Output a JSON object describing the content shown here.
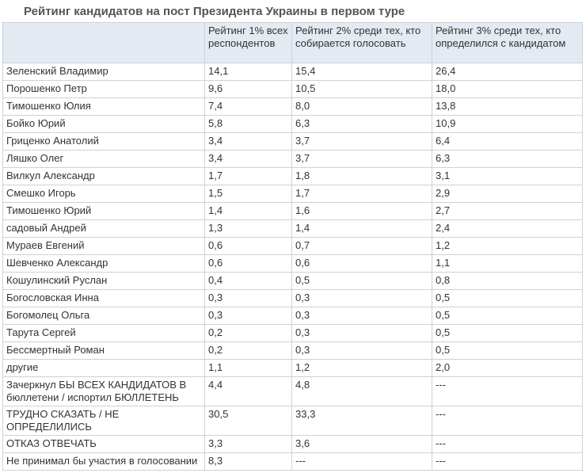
{
  "title": "Рейтинг кандидатов на пост Президента Украины в первом туре",
  "table": {
    "header": [
      "Рейтинг 1% всех респондентов",
      "Рейтинг 2% среди тех, кто собирается голосовать",
      "Рейтинг 3% среди тех, кто определился с кандидатом"
    ],
    "rows": [
      [
        "Зеленский Владимир",
        "14,1",
        "15,4",
        "26,4"
      ],
      [
        "Порошенко Петр",
        "9,6",
        "10,5",
        "18,0"
      ],
      [
        "Тимошенко Юлия",
        "7,4",
        "8,0",
        "13,8"
      ],
      [
        "Бойко Юрий",
        "5,8",
        "6,3",
        "10,9"
      ],
      [
        "Гриценко Анатолий",
        "3,4",
        "3,7",
        "6,4"
      ],
      [
        "Ляшко Олег",
        "3,4",
        "3,7",
        "6,3"
      ],
      [
        "Вилкул Александр",
        "1,7",
        "1,8",
        "3,1"
      ],
      [
        "Смешко Игорь",
        "1,5",
        "1,7",
        "2,9"
      ],
      [
        "Тимошенко Юрий",
        "1,4",
        "1,6",
        "2,7"
      ],
      [
        "садовый Андрей",
        "1,3",
        "1,4",
        "2,4"
      ],
      [
        "Мураев Евгений",
        "0,6",
        "0,7",
        "1,2"
      ],
      [
        "Шевченко Александр",
        "0,6",
        "0,6",
        "1,1"
      ],
      [
        "Кошулинский Руслан",
        "0,4",
        "0,5",
        "0,8"
      ],
      [
        "Богословская Инна",
        "0,3",
        "0,3",
        "0,5"
      ],
      [
        "Богомолец Ольга",
        "0,3",
        "0,3",
        "0,5"
      ],
      [
        "Тарута Сергей",
        "0,2",
        "0,3",
        "0,5"
      ],
      [
        "Бессмертный Роман",
        "0,2",
        "0,3",
        "0,5"
      ],
      [
        "другие",
        "1,1",
        "1,2",
        "2,0"
      ],
      [
        "Зачеркнул БЫ ВСЕХ КАНДИДАТОВ В бюллетени / испортил БЮЛЛЕТЕНЬ",
        "4,4",
        "4,8",
        "---"
      ],
      [
        "ТРУДНО СКАЗАТЬ / НЕ ОПРЕДЕЛИЛИСЬ",
        "30,5",
        "33,3",
        "---"
      ],
      [
        "ОТКАЗ ОТВЕЧАТЬ",
        "3,3",
        "3,6",
        "---"
      ],
      [
        "Не принимал бы участия в голосовании",
        "8,3",
        "---",
        "---"
      ]
    ]
  }
}
